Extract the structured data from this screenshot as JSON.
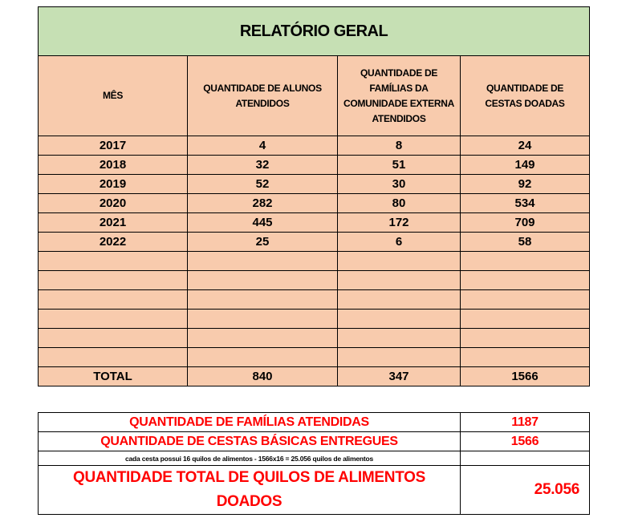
{
  "report": {
    "title": "RELATÓRIO GERAL",
    "headers": [
      "MÊS",
      "QUANTIDADE DE ALUNOS ATENDIDOS",
      "QUANTIDADE DE FAMÍLIAS DA COMUNIDADE EXTERNA ATENDIDOS",
      "QUANTIDADE DE CESTAS DOADAS"
    ],
    "rows": [
      [
        "2017",
        "4",
        "8",
        "24"
      ],
      [
        "2018",
        "32",
        "51",
        "149"
      ],
      [
        "2019",
        "52",
        "30",
        "92"
      ],
      [
        "2020",
        "282",
        "80",
        "534"
      ],
      [
        "2021",
        "445",
        "172",
        "709"
      ],
      [
        "2022",
        "25",
        "6",
        "58"
      ],
      [
        "",
        "",
        "",
        ""
      ],
      [
        "",
        "",
        "",
        ""
      ],
      [
        "",
        "",
        "",
        ""
      ],
      [
        "",
        "",
        "",
        ""
      ],
      [
        "",
        "",
        "",
        ""
      ],
      [
        "",
        "",
        "",
        ""
      ]
    ],
    "total": [
      "TOTAL",
      "840",
      "347",
      "1566"
    ]
  },
  "summary": {
    "families_label": "QUANTIDADE DE FAMÍLIAS ATENDIDAS",
    "families_value": "1187",
    "baskets_label": "QUANTIDADE DE CESTAS BÁSICAS ENTREGUES",
    "baskets_value": "1566",
    "note": "cada cesta possui 16 quilos de alimentos - 1566x16 = 25.056 quilos de alimentos",
    "total_kg_label": "QUANTIDADE TOTAL DE QUILOS DE ALIMENTOS DOADOS",
    "total_kg_value": "25.056"
  },
  "colors": {
    "title_bg": "#C6E0B4",
    "table_bg": "#F8CBAD",
    "summary_text": "#FF0000"
  }
}
